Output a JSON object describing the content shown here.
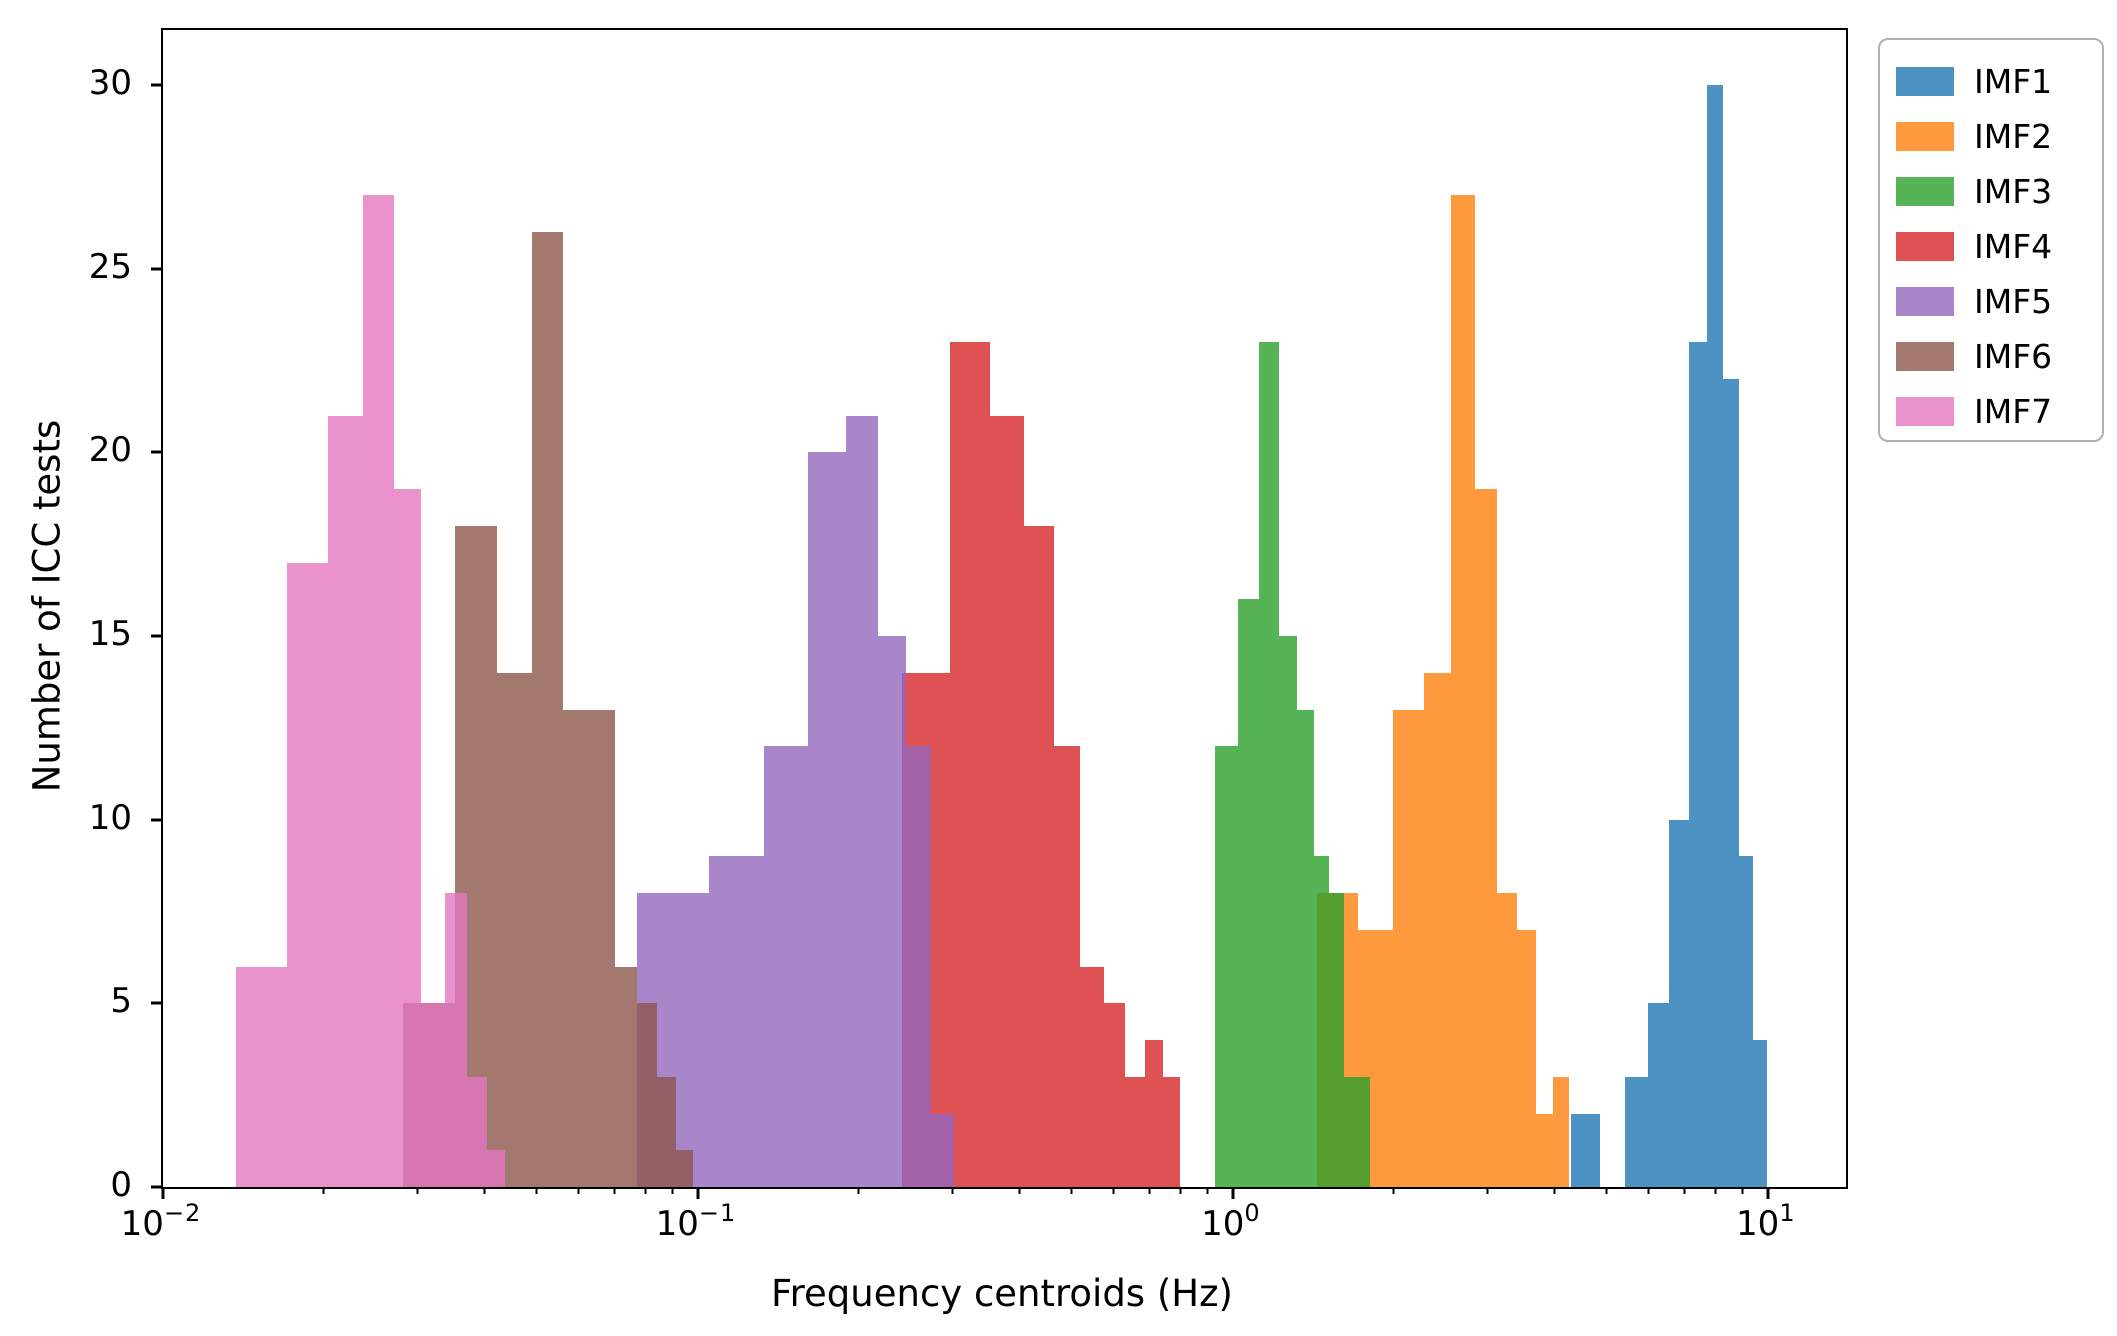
{
  "chart_data": {
    "type": "bar",
    "subtype": "overlapping-histograms",
    "title": "",
    "xlabel": "Frequency centroids (Hz)",
    "ylabel": "Number of ICC tests",
    "x_scale": "log",
    "xlim": [
      0.01,
      14.0
    ],
    "ylim": [
      0,
      31.5
    ],
    "grid": false,
    "y_ticks": [
      0,
      5,
      10,
      15,
      20,
      25,
      30
    ],
    "x_ticks": [
      {
        "value": 0.01,
        "base": "10",
        "exp": "−2"
      },
      {
        "value": 0.1,
        "base": "10",
        "exp": "−1"
      },
      {
        "value": 1.0,
        "base": "10",
        "exp": "0"
      },
      {
        "value": 10.0,
        "base": "10",
        "exp": "1"
      }
    ],
    "legend": {
      "position": "upper-right-outside"
    },
    "series": [
      {
        "name": "IMF1",
        "color": "#1f77b4",
        "alpha": 0.8,
        "bin_start": 4.28,
        "bin_width": 0.567,
        "counts": [
          2,
          0,
          3,
          5,
          10,
          23,
          30,
          22,
          9,
          4
        ]
      },
      {
        "name": "IMF2",
        "color": "#ff7f0e",
        "alpha": 0.8,
        "bin_start": 1.434,
        "bin_width": 0.281,
        "counts": [
          8,
          7,
          13,
          14,
          27,
          19,
          8,
          7,
          2,
          3
        ]
      },
      {
        "name": "IMF3",
        "color": "#2ca02c",
        "alpha": 0.8,
        "bin_start": 0.925,
        "bin_width": 0.098,
        "counts": [
          12,
          16,
          23,
          15,
          13,
          9,
          8,
          3,
          3
        ]
      },
      {
        "name": "IMF4",
        "color": "#d62728",
        "alpha": 0.8,
        "bin_start": 0.2411,
        "bin_width": 0.0554,
        "counts": [
          14,
          23,
          21,
          18,
          12,
          6,
          5,
          3,
          4,
          3
        ]
      },
      {
        "name": "IMF5",
        "color": "#9467bd",
        "alpha": 0.8,
        "bin_start": 0.0769,
        "bin_width": 0.028,
        "counts": [
          8,
          9,
          12,
          20,
          21,
          15,
          12,
          2
        ]
      },
      {
        "name": "IMF6",
        "color": "#8c564b",
        "alpha": 0.8,
        "bin_start": 0.0281,
        "bin_width": 0.00697,
        "counts": [
          5,
          18,
          14,
          26,
          13,
          13,
          6,
          5,
          3,
          1
        ]
      },
      {
        "name": "IMF7",
        "color": "#e377c2",
        "alpha": 0.8,
        "bin_start": 0.0137,
        "bin_width": 0.00332,
        "counts": [
          6,
          17,
          21,
          27,
          19,
          5,
          8,
          3,
          1
        ]
      }
    ]
  }
}
